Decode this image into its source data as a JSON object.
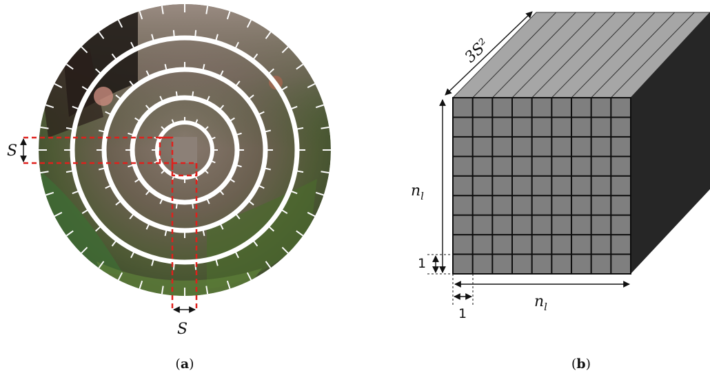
{
  "panel_a": {
    "caption_open": "(",
    "caption_letter": "a",
    "caption_close": ")",
    "label_vertical": "S",
    "label_horizontal": "S",
    "colors": {
      "dashed_outline": "#e0201c",
      "separator_rings": "#ffffff"
    }
  },
  "panel_b": {
    "caption_open": "(",
    "caption_letter": "b",
    "caption_close": ")",
    "depth_label": "3S²",
    "height_label": "n",
    "height_label_sub": "l",
    "width_label": "n",
    "width_label_sub": "l",
    "cell_height_label": "1",
    "cell_width_label": "1",
    "grid_rows": 9,
    "grid_cols": 9,
    "colors": {
      "front_face": "#7f7f7f",
      "top_face": "#a6a6a6",
      "side_face": "#262626",
      "grid_lines": "#0d0d0d"
    }
  }
}
